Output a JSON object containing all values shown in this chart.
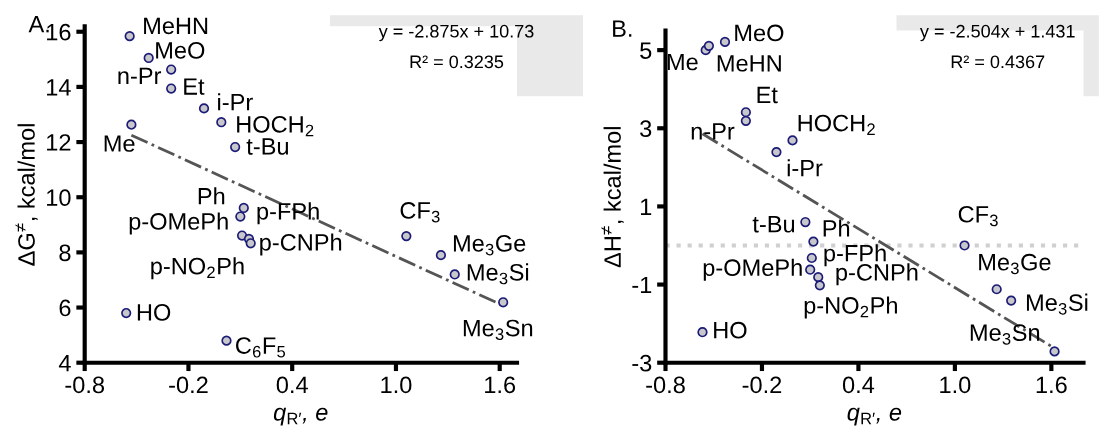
{
  "chart_data": [
    {
      "type": "scatter",
      "title": "A.",
      "xlabel": "q$_{R′}$, e",
      "ylabel": "ΔG$^{≠}$, kcal/mol",
      "xlim": [
        -0.8,
        1.7
      ],
      "ylim": [
        4,
        16.2
      ],
      "xticks": [
        -0.8,
        -0.2,
        0.4,
        {
          "value": 1.0,
          "label": "1.0"
        },
        1.6
      ],
      "yticks": [
        4,
        6,
        8,
        10,
        12,
        14,
        16
      ],
      "grid": false,
      "series": [
        {
          "marker": "circle",
          "color": "#c8c8cc",
          "x": [
            -0.53,
            -0.54,
            -0.43,
            -0.3,
            -0.3,
            -0.11,
            -0.01,
            0.07,
            0.12,
            0.1,
            0.11,
            0.15,
            0.16,
            1.06,
            1.26,
            1.34,
            1.62,
            -0.56,
            0.02
          ],
          "values": [
            12.63,
            15.84,
            15.05,
            13.94,
            14.63,
            13.22,
            12.72,
            11.82,
            9.61,
            9.3,
            8.61,
            8.49,
            8.33,
            8.59,
            7.9,
            7.2,
            6.19,
            5.8,
            4.8
          ]
        },
        {
          "type": "line",
          "color": "#555555",
          "line_style": "dashdot",
          "x": [
            -0.53,
            1.62
          ],
          "values": [
            12.25,
            6.07
          ]
        }
      ],
      "annotations": [
        "y = -2.875x + 10.73",
        "R² = 0.3235",
        {
          "text": "Me",
          "x": -0.53,
          "y": 12.63
        },
        {
          "text": "MeHN",
          "x": -0.54,
          "y": 15.84
        },
        {
          "text": "MeO",
          "x": -0.43,
          "y": 15.05
        },
        {
          "text": "Et",
          "x": -0.3,
          "y": 13.94
        },
        {
          "text": "n-Pr",
          "x": -0.3,
          "y": 14.63
        },
        {
          "text": "i-Pr",
          "x": -0.11,
          "y": 13.22
        },
        {
          "text": "HOCH$_{2}$",
          "x": -0.01,
          "y": 12.72
        },
        {
          "text": "t-Bu",
          "x": 0.07,
          "y": 11.82
        },
        {
          "text": "Ph",
          "x": 0.12,
          "y": 9.61
        },
        {
          "text": "p-OMePh",
          "x": 0.1,
          "y": 9.3
        },
        {
          "text": "p-FPh",
          "x": 0.11,
          "y": 8.61
        },
        {
          "text": "p-CNPh",
          "x": 0.15,
          "y": 8.49
        },
        {
          "text": "p-NO$_{2}$Ph",
          "x": 0.16,
          "y": 8.33
        },
        {
          "text": "CF$_{3}$",
          "x": 1.06,
          "y": 8.59
        },
        {
          "text": "Me$_{3}$Ge",
          "x": 1.26,
          "y": 7.9
        },
        {
          "text": "Me$_{3}$Si",
          "x": 1.34,
          "y": 7.2
        },
        {
          "text": "Me$_{3}$Sn",
          "x": 1.62,
          "y": 6.19
        },
        {
          "text": "HO",
          "x": -0.56,
          "y": 5.8
        },
        {
          "text": "C$_{6}$F$_{5}$",
          "x": 0.02,
          "y": 4.8
        }
      ]
    },
    {
      "type": "scatter",
      "title": "B.",
      "xlabel": "q$_{R′}$, e",
      "ylabel": "ΔH$^{≠}$, kcal/mol",
      "xlim": [
        -0.8,
        1.8
      ],
      "ylim": [
        -3,
        5.5
      ],
      "xticks": [
        -0.8,
        -0.2,
        0.4,
        {
          "value": 1.0,
          "label": "1.0"
        },
        1.6
      ],
      "yticks": [
        -3,
        -1,
        1,
        3,
        5
      ],
      "grid": false,
      "ref_lines": [
        {
          "axis": "y",
          "value": 0,
          "color": "#d0d0d0",
          "line_style": "dotted"
        }
      ],
      "series": [
        {
          "marker": "circle",
          "color": "#c8c8cc",
          "x": [
            -0.55,
            -0.53,
            -0.43,
            -0.3,
            -0.3,
            -0.11,
            -0.01,
            0.07,
            0.12,
            0.1,
            0.11,
            0.15,
            0.16,
            1.06,
            1.26,
            1.35,
            1.62,
            -0.57
          ],
          "values": [
            5.0,
            5.11,
            5.21,
            3.41,
            3.19,
            2.39,
            2.69,
            0.6,
            0.1,
            -0.62,
            -0.32,
            -0.81,
            -1.02,
            0.0,
            -1.12,
            -1.41,
            -2.71,
            -2.22
          ]
        },
        {
          "type": "line",
          "color": "#555555",
          "line_style": "dashdot",
          "x": [
            -0.57,
            1.62
          ],
          "values": [
            2.86,
            -2.63
          ]
        }
      ],
      "annotations": [
        "y = -2.504x + 1.431",
        "R² = 0.4367",
        {
          "text": "Me",
          "x": -0.55,
          "y": 5.0
        },
        {
          "text": "MeHN",
          "x": -0.53,
          "y": 5.11
        },
        {
          "text": "MeO",
          "x": -0.43,
          "y": 5.21
        },
        {
          "text": "Et",
          "x": -0.3,
          "y": 3.41
        },
        {
          "text": "n-Pr",
          "x": -0.3,
          "y": 3.19
        },
        {
          "text": "i-Pr",
          "x": -0.11,
          "y": 2.39
        },
        {
          "text": "HOCH$_{2}$",
          "x": -0.01,
          "y": 2.69
        },
        {
          "text": "t-Bu",
          "x": 0.07,
          "y": 0.6
        },
        {
          "text": "Ph",
          "x": 0.12,
          "y": 0.1
        },
        {
          "text": "p-OMePh",
          "x": 0.1,
          "y": -0.62
        },
        {
          "text": "p-FPh",
          "x": 0.11,
          "y": -0.32
        },
        {
          "text": "p-CNPh",
          "x": 0.15,
          "y": -0.81
        },
        {
          "text": "p-NO$_{2}$Ph",
          "x": 0.16,
          "y": -1.02
        },
        {
          "text": "CF$_{3}$",
          "x": 1.06,
          "y": 0.0
        },
        {
          "text": "Me$_{3}$Ge",
          "x": 1.26,
          "y": -1.12
        },
        {
          "text": "Me$_{3}$Si",
          "x": 1.35,
          "y": -1.41
        },
        {
          "text": "Me$_{3}$Sn",
          "x": 1.62,
          "y": -2.71
        },
        {
          "text": "HO",
          "x": -0.57,
          "y": -2.22
        }
      ]
    }
  ]
}
